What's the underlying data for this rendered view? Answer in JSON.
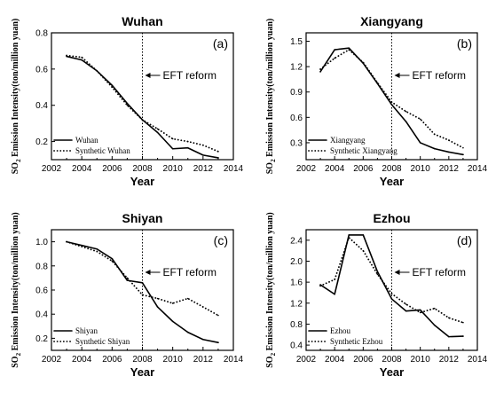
{
  "chart_data": [
    {
      "type": "line",
      "tag": "(a)",
      "title": "Wuhan",
      "xlabel": "Year",
      "ylabel_prefix": "SO",
      "ylabel_sub": "2",
      "ylabel_rest": " Emission Intensity(ton/million yuan)",
      "xlim": [
        2002,
        2014
      ],
      "ylim": [
        0.1,
        0.8
      ],
      "xticks": [
        "2002",
        "2004",
        "2006",
        "2008",
        "2010",
        "2012",
        "2014"
      ],
      "yticks": [
        "0.2",
        "0.4",
        "0.6",
        "0.8"
      ],
      "reform_year": 2008,
      "annotation": "EFT reform",
      "legend_position": "bottom-left",
      "x": [
        2003,
        2004,
        2005,
        2006,
        2007,
        2008,
        2009,
        2010,
        2011,
        2012,
        2013
      ],
      "series": [
        {
          "name": "Wuhan",
          "style": "solid",
          "values": [
            0.67,
            0.65,
            0.59,
            0.51,
            0.41,
            0.32,
            0.25,
            0.16,
            0.165,
            0.125,
            0.11
          ]
        },
        {
          "name": "Synthetic Wuhan",
          "style": "dotted",
          "values": [
            0.675,
            0.665,
            0.59,
            0.5,
            0.4,
            0.32,
            0.27,
            0.215,
            0.2,
            0.18,
            0.145
          ]
        }
      ]
    },
    {
      "type": "line",
      "tag": "(b)",
      "title": "Xiangyang",
      "xlabel": "Year",
      "ylabel_prefix": "SO",
      "ylabel_sub": "2",
      "ylabel_rest": " Emission Intensity(ton/million yuan)",
      "xlim": [
        2002,
        2014
      ],
      "ylim": [
        0.1,
        1.6
      ],
      "xticks": [
        "2002",
        "2004",
        "2006",
        "2008",
        "2010",
        "2012",
        "2014"
      ],
      "yticks": [
        "0.3",
        "0.6",
        "0.9",
        "1.2",
        "1.5"
      ],
      "reform_year": 2008,
      "annotation": "EFT reform",
      "legend_position": "bottom-left",
      "x": [
        2003,
        2004,
        2005,
        2006,
        2007,
        2008,
        2009,
        2010,
        2011,
        2012,
        2013
      ],
      "series": [
        {
          "name": "Xiangyang",
          "style": "solid",
          "values": [
            1.14,
            1.4,
            1.42,
            1.24,
            1.0,
            0.75,
            0.55,
            0.3,
            0.23,
            0.19,
            0.16
          ]
        },
        {
          "name": "Synthetic Xiangyang",
          "style": "dotted",
          "values": [
            1.17,
            1.3,
            1.4,
            1.25,
            1.01,
            0.78,
            0.67,
            0.58,
            0.4,
            0.33,
            0.24
          ]
        }
      ]
    },
    {
      "type": "line",
      "tag": "(c)",
      "title": "Shiyan",
      "xlabel": "Year",
      "ylabel_prefix": "SO",
      "ylabel_sub": "2",
      "ylabel_rest": " Emission Intensity(ton/million yuan)",
      "xlim": [
        2002,
        2014
      ],
      "ylim": [
        0.1,
        1.1
      ],
      "xticks": [
        "2002",
        "2004",
        "2006",
        "2008",
        "2010",
        "2012",
        "2014"
      ],
      "yticks": [
        "0.2",
        "0.4",
        "0.6",
        "0.8",
        "1.0"
      ],
      "reform_year": 2008,
      "annotation": "EFT reform",
      "legend_position": "bottom-left",
      "x": [
        2003,
        2004,
        2005,
        2006,
        2007,
        2008,
        2009,
        2010,
        2011,
        2012,
        2013
      ],
      "series": [
        {
          "name": "Shiyan",
          "style": "solid",
          "values": [
            1.0,
            0.97,
            0.94,
            0.86,
            0.68,
            0.66,
            0.46,
            0.34,
            0.25,
            0.19,
            0.165
          ]
        },
        {
          "name": "Synthetic Shiyan",
          "style": "dotted",
          "values": [
            1.0,
            0.96,
            0.92,
            0.84,
            0.7,
            0.56,
            0.53,
            0.49,
            0.53,
            0.46,
            0.39
          ]
        }
      ]
    },
    {
      "type": "line",
      "tag": "(d)",
      "title": "Ezhou",
      "xlabel": "Year",
      "ylabel_prefix": "SO",
      "ylabel_sub": "2",
      "ylabel_rest": " Emission Intensity(ton/million yuan)",
      "xlim": [
        2002,
        2014
      ],
      "ylim": [
        0.3,
        2.6
      ],
      "xticks": [
        "2002",
        "2004",
        "2006",
        "2008",
        "2010",
        "2012",
        "2014"
      ],
      "yticks": [
        "0.4",
        "0.8",
        "1.2",
        "1.6",
        "2.0",
        "2.4"
      ],
      "reform_year": 2008,
      "annotation": "EFT reform",
      "legend_position": "bottom-left",
      "x": [
        2003,
        2004,
        2005,
        2006,
        2007,
        2008,
        2009,
        2010,
        2011,
        2012,
        2013
      ],
      "series": [
        {
          "name": "Ezhou",
          "style": "solid",
          "values": [
            1.55,
            1.37,
            2.5,
            2.5,
            1.8,
            1.28,
            1.05,
            1.07,
            0.78,
            0.56,
            0.57
          ]
        },
        {
          "name": "Synthetic Ezhou",
          "style": "dotted",
          "values": [
            1.53,
            1.65,
            2.45,
            2.2,
            1.75,
            1.38,
            1.18,
            1.02,
            1.1,
            0.92,
            0.83
          ]
        }
      ]
    }
  ]
}
